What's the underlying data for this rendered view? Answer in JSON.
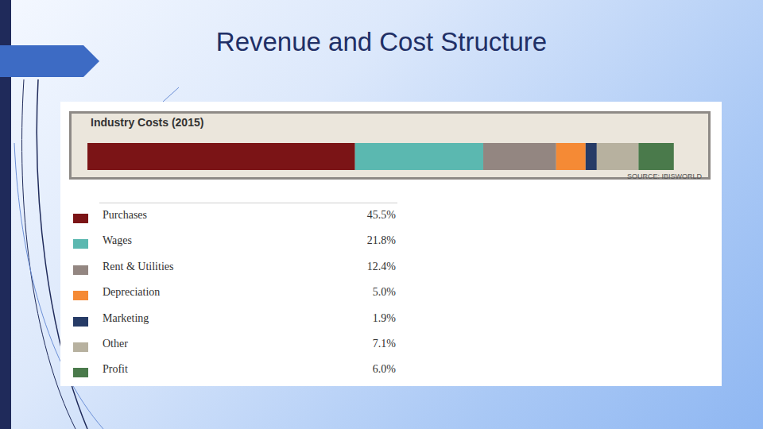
{
  "header": {
    "title": "Revenue and Cost Structure"
  },
  "chart_data": {
    "type": "bar",
    "title": "Industry Costs (2015)",
    "annotations": [
      "SOURCE: IBISWORLD"
    ],
    "orientation": "horizontal",
    "stacked": true,
    "grid": false,
    "tick_labels": false,
    "categories": [
      null
    ],
    "xlim": [
      0,
      100
    ],
    "series": [
      {
        "name": "Purchases",
        "color": "#7b1416",
        "values": [
          45.5
        ],
        "value_labels": [
          "45.5%"
        ]
      },
      {
        "name": "Wages",
        "color": "#5bb8b0",
        "values": [
          21.8
        ],
        "value_labels": [
          "21.8%"
        ]
      },
      {
        "name": "Rent & Utilities",
        "color": "#938681",
        "values": [
          12.4
        ],
        "value_labels": [
          "12.4%"
        ]
      },
      {
        "name": "Depreciation",
        "color": "#f58a35",
        "values": [
          5.0
        ],
        "value_labels": [
          "5.0%"
        ]
      },
      {
        "name": "Marketing",
        "color": "#263b66",
        "values": [
          1.9
        ],
        "value_labels": [
          "1.9%"
        ]
      },
      {
        "name": "Other",
        "color": "#b7b19f",
        "values": [
          7.1
        ],
        "value_labels": [
          "7.1%"
        ]
      },
      {
        "name": "Profit",
        "color": "#4a7a4b",
        "values": [
          6.0
        ],
        "value_labels": [
          "6.0%"
        ]
      }
    ]
  }
}
